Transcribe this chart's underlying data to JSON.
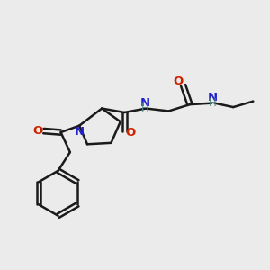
{
  "background_color": "#ebebeb",
  "bond_color": "#1a1a1a",
  "N_color": "#2222cc",
  "O_color": "#cc2200",
  "H_color": "#558888",
  "figsize": [
    3.0,
    3.0
  ],
  "dpi": 100,
  "xlim": [
    0,
    10
  ],
  "ylim": [
    0,
    10
  ]
}
